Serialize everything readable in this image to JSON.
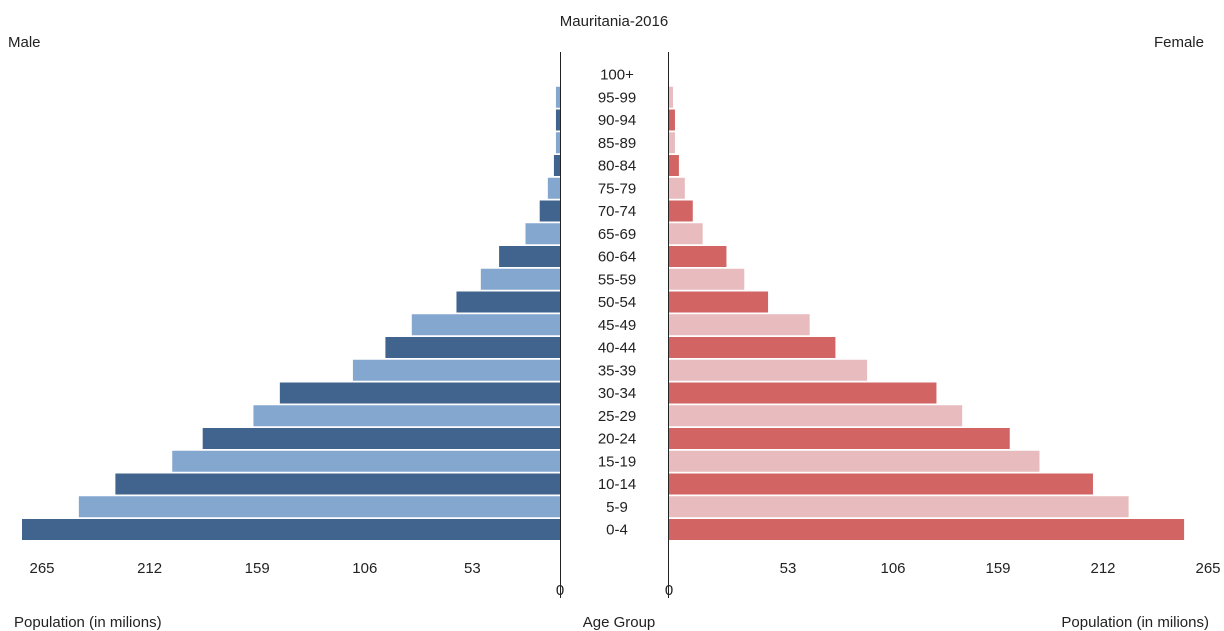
{
  "chart_data": {
    "type": "bar",
    "title": "Mauritania-2016",
    "left_label": "Male",
    "right_label": "Female",
    "xlabel_left": "Population (in milions)",
    "xlabel_right": "Population (in milions)",
    "center_label": "Age Group",
    "xlim": [
      0,
      265
    ],
    "ticks_left": [
      "265",
      "212",
      "159",
      "106",
      "53",
      "0"
    ],
    "ticks_right": [
      "0",
      "53",
      "106",
      "159",
      "212",
      "265"
    ],
    "tick_values_left": [
      265,
      212,
      159,
      106,
      53,
      0
    ],
    "tick_values_right": [
      0,
      53,
      106,
      159,
      212,
      265
    ],
    "categories": [
      "0-4",
      "5-9",
      "10-14",
      "15-19",
      "20-24",
      "25-29",
      "30-34",
      "35-39",
      "40-44",
      "45-49",
      "50-54",
      "55-59",
      "60-64",
      "65-69",
      "70-74",
      "75-79",
      "80-84",
      "85-89",
      "90-94",
      "95-99",
      "100+"
    ],
    "series": [
      {
        "name": "Male",
        "values": [
          265,
          237,
          219,
          191,
          176,
          151,
          138,
          102,
          86,
          73,
          51,
          39,
          30,
          17,
          10,
          6,
          3,
          2,
          2,
          2,
          0
        ]
      },
      {
        "name": "Female",
        "values": [
          260,
          232,
          214,
          187,
          172,
          148,
          135,
          100,
          84,
          71,
          50,
          38,
          29,
          17,
          12,
          8,
          5,
          3,
          3,
          2,
          0
        ]
      }
    ],
    "colors": {
      "male_dark": "#41648e",
      "male_light": "#84a7cf",
      "female_dark": "#d26464",
      "female_light": "#e8bcbe"
    }
  }
}
